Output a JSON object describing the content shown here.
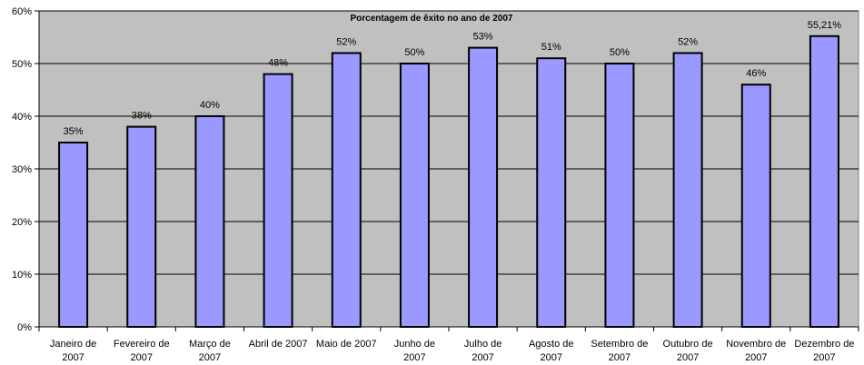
{
  "chart_data": {
    "type": "bar",
    "title": "Porcentagem de êxito no ano de 2007",
    "xlabel": "",
    "ylabel": "",
    "ylim": [
      0,
      60
    ],
    "y_ticks": [
      "0%",
      "10%",
      "20%",
      "30%",
      "40%",
      "50%",
      "60%"
    ],
    "grid": true,
    "legend": "none",
    "categories": [
      [
        "Janeiro de",
        "2007"
      ],
      [
        "Fevereiro de",
        "2007"
      ],
      [
        "Março de",
        "2007"
      ],
      [
        "Abril de 2007"
      ],
      [
        "Maio de 2007"
      ],
      [
        "Junho de",
        "2007"
      ],
      [
        "Julho de",
        "2007"
      ],
      [
        "Agosto de",
        "2007"
      ],
      [
        "Setembro de",
        "2007"
      ],
      [
        "Outubro de",
        "2007"
      ],
      [
        "Novembro de",
        "2007"
      ],
      [
        "Dezembro de",
        "2007"
      ]
    ],
    "values": [
      35,
      38,
      40,
      48,
      52,
      50,
      53,
      51,
      50,
      52,
      46,
      55.21
    ],
    "data_labels": [
      "35%",
      "38%",
      "40%",
      "48%",
      "52%",
      "50%",
      "53%",
      "51%",
      "50%",
      "52%",
      "46%",
      "55,21%"
    ],
    "colors": {
      "plot_background": "#c0c0c0",
      "bar_fill": "#9999ff",
      "bar_stroke": "#000000",
      "gridline": "#000000"
    }
  }
}
